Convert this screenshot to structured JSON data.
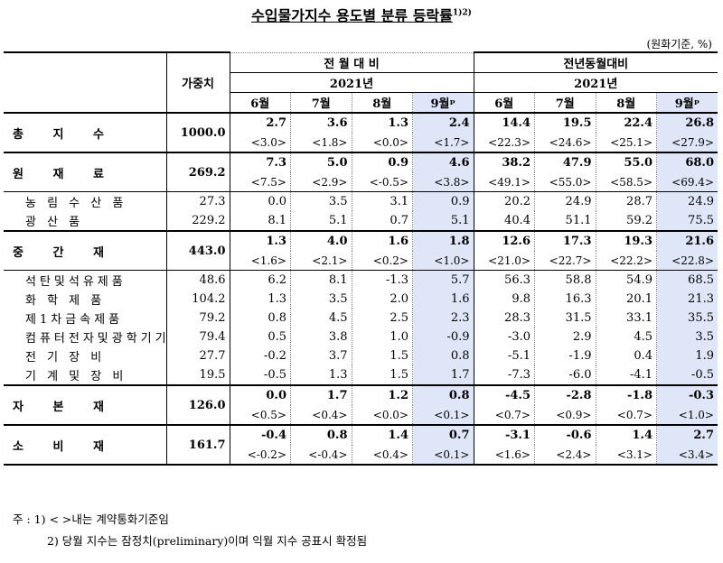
{
  "title": "수입물가지수 용도별 분류 등락률",
  "title_sup": "1)2)",
  "unit": "(원화기준, %)",
  "headers": {
    "weight": "가중치",
    "group1": "전 월 대 비",
    "group2": "전년동월대비",
    "year": "2021년",
    "months": [
      "6월",
      "7월",
      "8월",
      "9월ᵖ",
      "6월",
      "7월",
      "8월",
      "9월ᵖ"
    ]
  },
  "rows": [
    {
      "label": "총 지 수",
      "weight": "1000.0",
      "main": [
        "2.7",
        "3.6",
        "1.3",
        "2.4",
        "14.4",
        "19.5",
        "22.4",
        "26.8"
      ],
      "contract": [
        "<3.0>",
        "<1.8>",
        "<0.0>",
        "<1.7>",
        "<22.3>",
        "<24.6>",
        "<25.1>",
        "<27.9>"
      ]
    },
    {
      "label": "원 재 료",
      "weight": "269.2",
      "main": [
        "7.3",
        "5.0",
        "0.9",
        "4.6",
        "38.2",
        "47.9",
        "55.0",
        "68.0"
      ],
      "contract": [
        "<7.5>",
        "<2.9>",
        "<-0.5>",
        "<3.8>",
        "<49.1>",
        "<55.0>",
        "<58.5>",
        "<69.4>"
      ],
      "subs": [
        {
          "label": "농 림 수 산 품",
          "weight": "27.3",
          "values": [
            "0.0",
            "3.5",
            "3.1",
            "0.9",
            "20.2",
            "24.9",
            "28.7",
            "24.9"
          ]
        },
        {
          "label": "광 산 품",
          "weight": "229.2",
          "values": [
            "8.1",
            "5.1",
            "0.7",
            "5.1",
            "40.4",
            "51.1",
            "59.2",
            "75.5"
          ]
        }
      ]
    },
    {
      "label": "중 간 재",
      "weight": "443.0",
      "main": [
        "1.3",
        "4.0",
        "1.6",
        "1.8",
        "12.6",
        "17.3",
        "19.3",
        "21.6"
      ],
      "contract": [
        "<1.6>",
        "<2.1>",
        "<0.2>",
        "<1.0>",
        "<21.0>",
        "<22.7>",
        "<22.2>",
        "<22.8>"
      ],
      "subs": [
        {
          "label": "석탄및석유제품",
          "weight": "48.6",
          "values": [
            "6.2",
            "8.1",
            "-1.3",
            "5.7",
            "56.3",
            "58.8",
            "54.9",
            "68.5"
          ]
        },
        {
          "label": "화 학 제 품",
          "weight": "104.2",
          "values": [
            "1.3",
            "3.5",
            "2.0",
            "1.6",
            "9.8",
            "16.3",
            "20.1",
            "21.3"
          ]
        },
        {
          "label": "제1차금속제품",
          "weight": "79.2",
          "values": [
            "0.8",
            "4.5",
            "2.5",
            "2.3",
            "28.3",
            "31.5",
            "33.1",
            "35.5"
          ]
        },
        {
          "label": "컴퓨터전자및광학기기",
          "weight": "79.4",
          "values": [
            "0.5",
            "3.8",
            "1.0",
            "-0.9",
            "-3.0",
            "2.9",
            "4.5",
            "3.5"
          ]
        },
        {
          "label": "전 기 장 비",
          "weight": "27.7",
          "values": [
            "-0.2",
            "3.7",
            "1.5",
            "0.8",
            "-5.1",
            "-1.9",
            "0.4",
            "1.9"
          ]
        },
        {
          "label": "기 계 및 장 비",
          "weight": "19.5",
          "values": [
            "-0.5",
            "1.3",
            "1.5",
            "1.7",
            "-7.3",
            "-6.0",
            "-4.1",
            "-0.5"
          ]
        }
      ]
    },
    {
      "label": "자 본 재",
      "weight": "126.0",
      "main": [
        "0.0",
        "1.7",
        "1.2",
        "0.8",
        "-4.5",
        "-2.8",
        "-1.8",
        "-0.3"
      ],
      "contract": [
        "<0.5>",
        "<0.4>",
        "<0.0>",
        "<0.1>",
        "<0.7>",
        "<0.9>",
        "<0.7>",
        "<1.0>"
      ]
    },
    {
      "label": "소 비 재",
      "weight": "161.7",
      "main": [
        "-0.4",
        "0.8",
        "1.4",
        "0.7",
        "-3.1",
        "-0.6",
        "1.4",
        "2.7"
      ],
      "contract": [
        "<-0.2>",
        "<-0.4>",
        "<0.4>",
        "<0.1>",
        "<1.6>",
        "<2.4>",
        "<3.1>",
        "<3.4>"
      ]
    }
  ],
  "notes": {
    "prefix": "주 :",
    "n1": "1) < >내는 계약통화기준임",
    "n2": "2) 당월 지수는 잠정치(preliminary)이며 익월 지수 공표시 확정됨"
  }
}
